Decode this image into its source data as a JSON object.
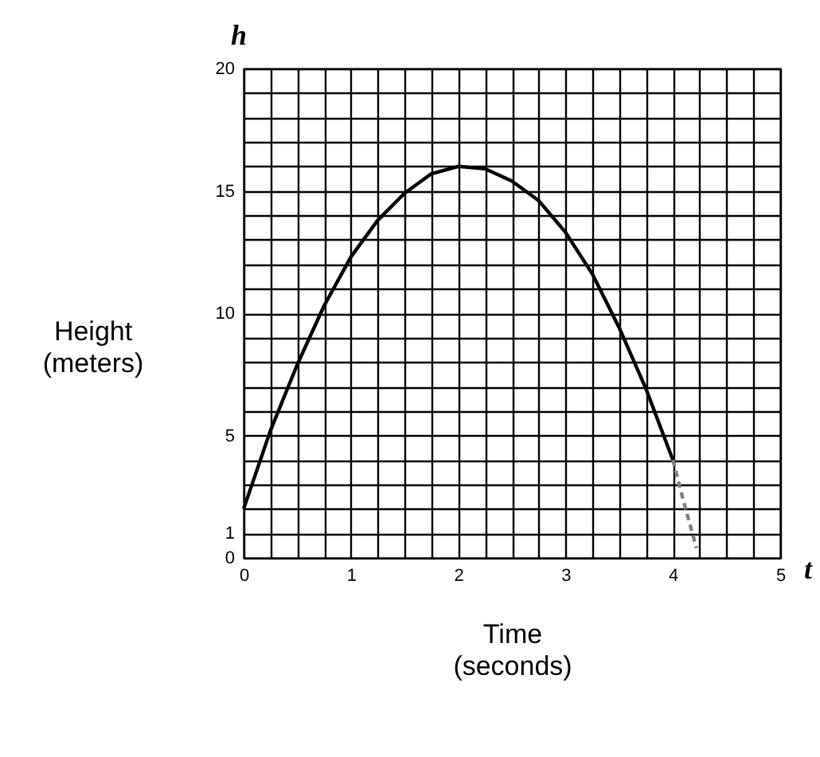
{
  "chart_data": {
    "type": "line",
    "xlabel": "Time\n(seconds)",
    "ylabel": "Height\n(meters)",
    "annotations": [
      "h",
      "t"
    ],
    "series": [
      {
        "color": "#000000",
        "line_style": "solid",
        "x": [
          0,
          0.25,
          0.5,
          0.75,
          1,
          1.25,
          1.5,
          1.75,
          2,
          2.25,
          2.5,
          2.75,
          3,
          3.25,
          3.5,
          3.75,
          4
        ],
        "values": [
          2,
          5.2,
          7.9,
          10.3,
          12.3,
          13.8,
          14.9,
          15.7,
          16,
          15.9,
          15.4,
          14.6,
          13.3,
          11.6,
          9.4,
          6.9,
          4
        ]
      },
      {
        "color": "#808080",
        "line_style": "dashed",
        "x": [
          4,
          4.1,
          4.22
        ],
        "values": [
          4,
          2.3,
          0.4
        ]
      }
    ],
    "xlim": [
      0,
      5
    ],
    "ylim": [
      0,
      20
    ],
    "xticks": [
      0,
      {
        "value": 0.25,
        "label": null
      },
      {
        "value": 0.5,
        "label": null
      },
      {
        "value": 0.75,
        "label": null
      },
      1,
      {
        "value": 1.25,
        "label": null
      },
      {
        "value": 1.5,
        "label": null
      },
      {
        "value": 1.75,
        "label": null
      },
      2,
      {
        "value": 2.25,
        "label": null
      },
      {
        "value": 2.5,
        "label": null
      },
      {
        "value": 2.75,
        "label": null
      },
      3,
      {
        "value": 3.25,
        "label": null
      },
      {
        "value": 3.5,
        "label": null
      },
      {
        "value": 3.75,
        "label": null
      },
      4,
      {
        "value": 4.25,
        "label": null
      },
      {
        "value": 4.5,
        "label": null
      },
      {
        "value": 4.75,
        "label": null
      },
      5
    ],
    "yticks": [
      0,
      1,
      {
        "value": 2,
        "label": null
      },
      {
        "value": 3,
        "label": null
      },
      {
        "value": 4,
        "label": null
      },
      5,
      {
        "value": 6,
        "label": null
      },
      {
        "value": 7,
        "label": null
      },
      {
        "value": 8,
        "label": null
      },
      {
        "value": 9,
        "label": null
      },
      10,
      {
        "value": 11,
        "label": null
      },
      {
        "value": 12,
        "label": null
      },
      {
        "value": 13,
        "label": null
      },
      {
        "value": 14,
        "label": null
      },
      15,
      {
        "value": 16,
        "label": null
      },
      {
        "value": 17,
        "label": null
      },
      {
        "value": 18,
        "label": null
      },
      {
        "value": 19,
        "label": null
      },
      20
    ],
    "grid": true,
    "marker": "none"
  }
}
